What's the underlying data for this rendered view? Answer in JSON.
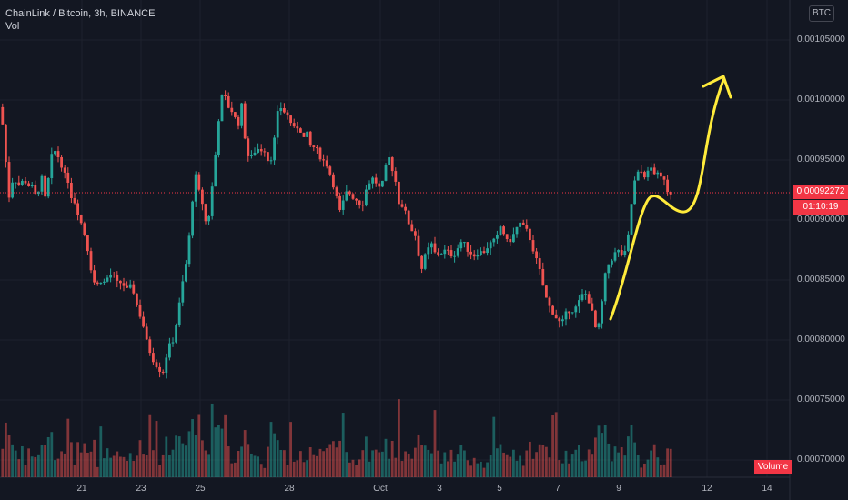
{
  "header": {
    "symbol_line": "ChainLink / Bitcoin, 3h, BINANCE",
    "vol_line": "Vol"
  },
  "currency_button": "BTC",
  "last_price": "0.00092272",
  "countdown": "01:10:19",
  "volume_label": "Volume",
  "colors": {
    "background": "#131722",
    "up": "#26a69a",
    "down": "#ef5350",
    "annotation": "#ffeb3b",
    "last_price_bg": "#f23645",
    "grid": "#1e222d"
  },
  "chart_data": {
    "type": "candlestick",
    "y_ticks": [
      "0.00105000",
      "0.00100000",
      "0.00095000",
      "0.00090000",
      "0.00085000",
      "0.00080000",
      "0.00075000",
      "0.00070000"
    ],
    "ylim": [
      0.000693,
      0.001065
    ],
    "x_ticks": [
      "21",
      "23",
      "25",
      "28",
      "Oct",
      "3",
      "5",
      "7",
      "9",
      "12",
      "14"
    ],
    "price_path": [
      [
        0,
        0.000997
      ],
      [
        4,
        0.000985
      ],
      [
        8,
        0.00095
      ],
      [
        12,
        0.000918
      ],
      [
        16,
        0.000935
      ],
      [
        20,
        0.000932
      ],
      [
        24,
        0.000928
      ],
      [
        28,
        0.000935
      ],
      [
        32,
        0.000928
      ],
      [
        36,
        0.00093
      ],
      [
        40,
        0.00092
      ],
      [
        44,
        0.000925
      ],
      [
        48,
        0.000935
      ],
      [
        52,
        0.000915
      ],
      [
        56,
        0.00094
      ],
      [
        60,
        0.00096
      ],
      [
        64,
        0.000955
      ],
      [
        68,
        0.00095
      ],
      [
        72,
        0.000938
      ],
      [
        76,
        0.000935
      ],
      [
        80,
        0.00092
      ],
      [
        84,
        0.000915
      ],
      [
        88,
        0.000905
      ],
      [
        92,
        0.000895
      ],
      [
        96,
        0.000885
      ],
      [
        100,
        0.000868
      ],
      [
        104,
        0.00085
      ],
      [
        108,
        0.000845
      ],
      [
        112,
        0.00085
      ],
      [
        116,
        0.000848
      ],
      [
        120,
        0.000852
      ],
      [
        124,
        0.000855
      ],
      [
        128,
        0.000852
      ],
      [
        132,
        0.000845
      ],
      [
        136,
        0.00085
      ],
      [
        140,
        0.00084
      ],
      [
        144,
        0.000845
      ],
      [
        148,
        0.000842
      ],
      [
        152,
        0.00083
      ],
      [
        156,
        0.00082
      ],
      [
        160,
        0.00081
      ],
      [
        164,
        0.000795
      ],
      [
        168,
        0.000788
      ],
      [
        172,
        0.00078
      ],
      [
        176,
        0.000778
      ],
      [
        180,
        0.00077
      ],
      [
        184,
        0.000785
      ],
      [
        188,
        0.000795
      ],
      [
        192,
        0.0008
      ],
      [
        196,
        0.000815
      ],
      [
        200,
        0.000835
      ],
      [
        204,
        0.000855
      ],
      [
        208,
        0.00087
      ],
      [
        212,
        0.000905
      ],
      [
        216,
        0.00094
      ],
      [
        220,
        0.000925
      ],
      [
        224,
        0.000915
      ],
      [
        228,
        0.000898
      ],
      [
        232,
        0.000905
      ],
      [
        236,
        0.000935
      ],
      [
        240,
        0.000965
      ],
      [
        244,
        0.001
      ],
      [
        248,
        0.001005
      ],
      [
        252,
        0.000995
      ],
      [
        256,
        0.000992
      ],
      [
        260,
        0.000985
      ],
      [
        264,
        0.00098
      ],
      [
        268,
        0.000998
      ],
      [
        272,
        0.00096
      ],
      [
        276,
        0.00095
      ],
      [
        280,
        0.000955
      ],
      [
        284,
        0.00096
      ],
      [
        288,
        0.000958
      ],
      [
        292,
        0.00096
      ],
      [
        296,
        0.00095
      ],
      [
        300,
        0.000952
      ],
      [
        304,
        0.00097
      ],
      [
        308,
        0.000995
      ],
      [
        312,
        0.000993
      ],
      [
        316,
        0.000988
      ],
      [
        320,
        0.000985
      ],
      [
        324,
        0.000975
      ],
      [
        328,
        0.000978
      ],
      [
        332,
        0.000975
      ],
      [
        336,
        0.000968
      ],
      [
        340,
        0.000972
      ],
      [
        344,
        0.000958
      ],
      [
        348,
        0.000962
      ],
      [
        352,
        0.000955
      ],
      [
        356,
        0.00095
      ],
      [
        360,
        0.000948
      ],
      [
        364,
        0.00094
      ],
      [
        368,
        0.00093
      ],
      [
        372,
        0.000918
      ],
      [
        376,
        0.000905
      ],
      [
        380,
        0.000918
      ],
      [
        384,
        0.000925
      ],
      [
        388,
        0.00092
      ],
      [
        392,
        0.000918
      ],
      [
        396,
        0.000915
      ],
      [
        400,
        0.000912
      ],
      [
        404,
        0.000925
      ],
      [
        408,
        0.000932
      ],
      [
        412,
        0.000935
      ],
      [
        416,
        0.00093
      ],
      [
        420,
        0.000925
      ],
      [
        424,
        0.000935
      ],
      [
        428,
        0.000955
      ],
      [
        432,
        0.000945
      ],
      [
        436,
        0.000935
      ],
      [
        440,
        0.000915
      ],
      [
        444,
        0.000912
      ],
      [
        448,
        0.000905
      ],
      [
        452,
        0.000895
      ],
      [
        456,
        0.00089
      ],
      [
        460,
        0.000885
      ],
      [
        464,
        0.000855
      ],
      [
        468,
        0.000868
      ],
      [
        472,
        0.000875
      ],
      [
        476,
        0.00088
      ],
      [
        480,
        0.000872
      ],
      [
        484,
        0.000872
      ],
      [
        488,
        0.000873
      ],
      [
        492,
        0.000875
      ],
      [
        496,
        0.000872
      ],
      [
        500,
        0.00087
      ],
      [
        504,
        0.000875
      ],
      [
        508,
        0.000882
      ],
      [
        512,
        0.00088
      ],
      [
        516,
        0.000875
      ],
      [
        520,
        0.000872
      ],
      [
        524,
        0.00087
      ],
      [
        528,
        0.000875
      ],
      [
        532,
        0.000872
      ],
      [
        536,
        0.000876
      ],
      [
        540,
        0.00088
      ],
      [
        544,
        0.000882
      ],
      [
        548,
        0.000885
      ],
      [
        552,
        0.000895
      ],
      [
        556,
        0.000888
      ],
      [
        560,
        0.00088
      ],
      [
        564,
        0.000885
      ],
      [
        568,
        0.00089
      ],
      [
        572,
        0.000898
      ],
      [
        576,
        0.000895
      ],
      [
        580,
        0.000892
      ],
      [
        584,
        0.000885
      ],
      [
        588,
        0.000875
      ],
      [
        592,
        0.000865
      ],
      [
        596,
        0.000855
      ],
      [
        600,
        0.00084
      ],
      [
        604,
        0.00083
      ],
      [
        608,
        0.000825
      ],
      [
        612,
        0.00082
      ],
      [
        616,
        0.000815
      ],
      [
        620,
        0.000815
      ],
      [
        624,
        0.000822
      ],
      [
        628,
        0.000825
      ],
      [
        632,
        0.000825
      ],
      [
        636,
        0.000828
      ],
      [
        640,
        0.000835
      ],
      [
        644,
        0.00084
      ],
      [
        648,
        0.000835
      ],
      [
        652,
        0.000825
      ],
      [
        656,
        0.00081
      ],
      [
        660,
        0.000812
      ],
      [
        664,
        0.000835
      ],
      [
        668,
        0.00086
      ],
      [
        672,
        0.000865
      ],
      [
        676,
        0.00087
      ],
      [
        680,
        0.000875
      ],
      [
        684,
        0.000872
      ],
      [
        688,
        0.00087
      ],
      [
        692,
        0.000885
      ],
      [
        696,
        0.000915
      ],
      [
        700,
        0.000935
      ],
      [
        704,
        0.00094
      ],
      [
        708,
        0.00094
      ],
      [
        712,
        0.000935
      ],
      [
        716,
        0.000945
      ],
      [
        720,
        0.00094
      ],
      [
        724,
        0.000938
      ],
      [
        728,
        0.000935
      ],
      [
        732,
        0.000935
      ],
      [
        736,
        0.000923
      ]
    ]
  }
}
